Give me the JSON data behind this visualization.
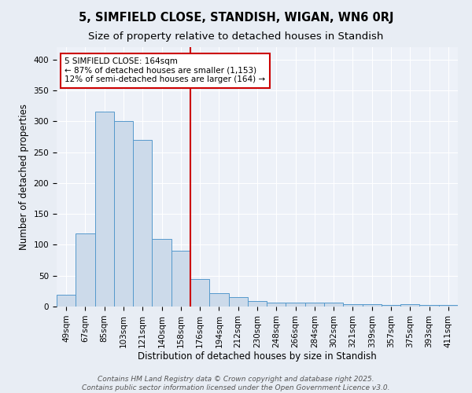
{
  "title": "5, SIMFIELD CLOSE, STANDISH, WIGAN, WN6 0RJ",
  "subtitle": "Size of property relative to detached houses in Standish",
  "xlabel": "Distribution of detached houses by size in Standish",
  "ylabel": "Number of detached properties",
  "bar_color": "#ccdaea",
  "bar_edge_color": "#5599cc",
  "bg_color": "#e8edf4",
  "plot_bg_color": "#edf1f8",
  "grid_color": "#ffffff",
  "categories": [
    "49sqm",
    "67sqm",
    "85sqm",
    "103sqm",
    "121sqm",
    "140sqm",
    "158sqm",
    "176sqm",
    "194sqm",
    "212sqm",
    "230sqm",
    "248sqm",
    "266sqm",
    "284sqm",
    "302sqm",
    "321sqm",
    "339sqm",
    "357sqm",
    "375sqm",
    "393sqm",
    "411sqm"
  ],
  "values": [
    19,
    119,
    315,
    300,
    270,
    110,
    90,
    45,
    22,
    15,
    9,
    7,
    6,
    6,
    6,
    4,
    4,
    2,
    4,
    2,
    3
  ],
  "vline_color": "#cc0000",
  "annotation_title": "5 SIMFIELD CLOSE: 164sqm",
  "annotation_line1": "← 87% of detached houses are smaller (1,153)",
  "annotation_line2": "12% of semi-detached houses are larger (164) →",
  "annotation_box_color": "#ffffff",
  "annotation_box_edge": "#cc0000",
  "ylim": [
    0,
    420
  ],
  "yticks": [
    0,
    50,
    100,
    150,
    200,
    250,
    300,
    350,
    400
  ],
  "footer": "Contains HM Land Registry data © Crown copyright and database right 2025.\nContains public sector information licensed under the Open Government Licence v3.0.",
  "title_fontsize": 10.5,
  "subtitle_fontsize": 9.5,
  "axis_label_fontsize": 8.5,
  "tick_fontsize": 7.5,
  "annotation_fontsize": 7.5,
  "footer_fontsize": 6.5
}
